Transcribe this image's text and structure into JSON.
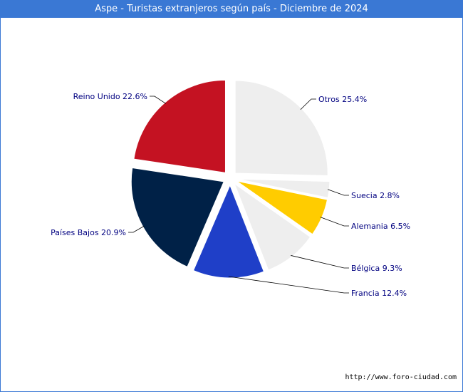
{
  "chart_data": {
    "type": "pie",
    "title": "Aspe - Turistas extranjeros según país - Diciembre de 2024",
    "slices": [
      {
        "label": "Otros",
        "value": 25.4,
        "display": "Otros 25.4%",
        "color": "#eeeeee"
      },
      {
        "label": "Suecia",
        "value": 2.8,
        "display": "Suecia 2.8%",
        "color": "#eeeeee"
      },
      {
        "label": "Alemania",
        "value": 6.5,
        "display": "Alemania 6.5%",
        "color": "#ffcc00"
      },
      {
        "label": "Bélgica",
        "value": 9.3,
        "display": "Bélgica 9.3%",
        "color": "#eeeeee"
      },
      {
        "label": "Francia",
        "value": 12.4,
        "display": "Francia 12.4%",
        "color": "#1f3fc8"
      },
      {
        "label": "Países Bajos",
        "value": 20.9,
        "display": "Países Bajos 20.9%",
        "color": "#002147"
      },
      {
        "label": "Reino Unido",
        "value": 22.6,
        "display": "Reino Unido 22.6%",
        "color": "#c41222"
      }
    ]
  },
  "footer": {
    "source_url": "http://www.foro-ciudad.com"
  }
}
